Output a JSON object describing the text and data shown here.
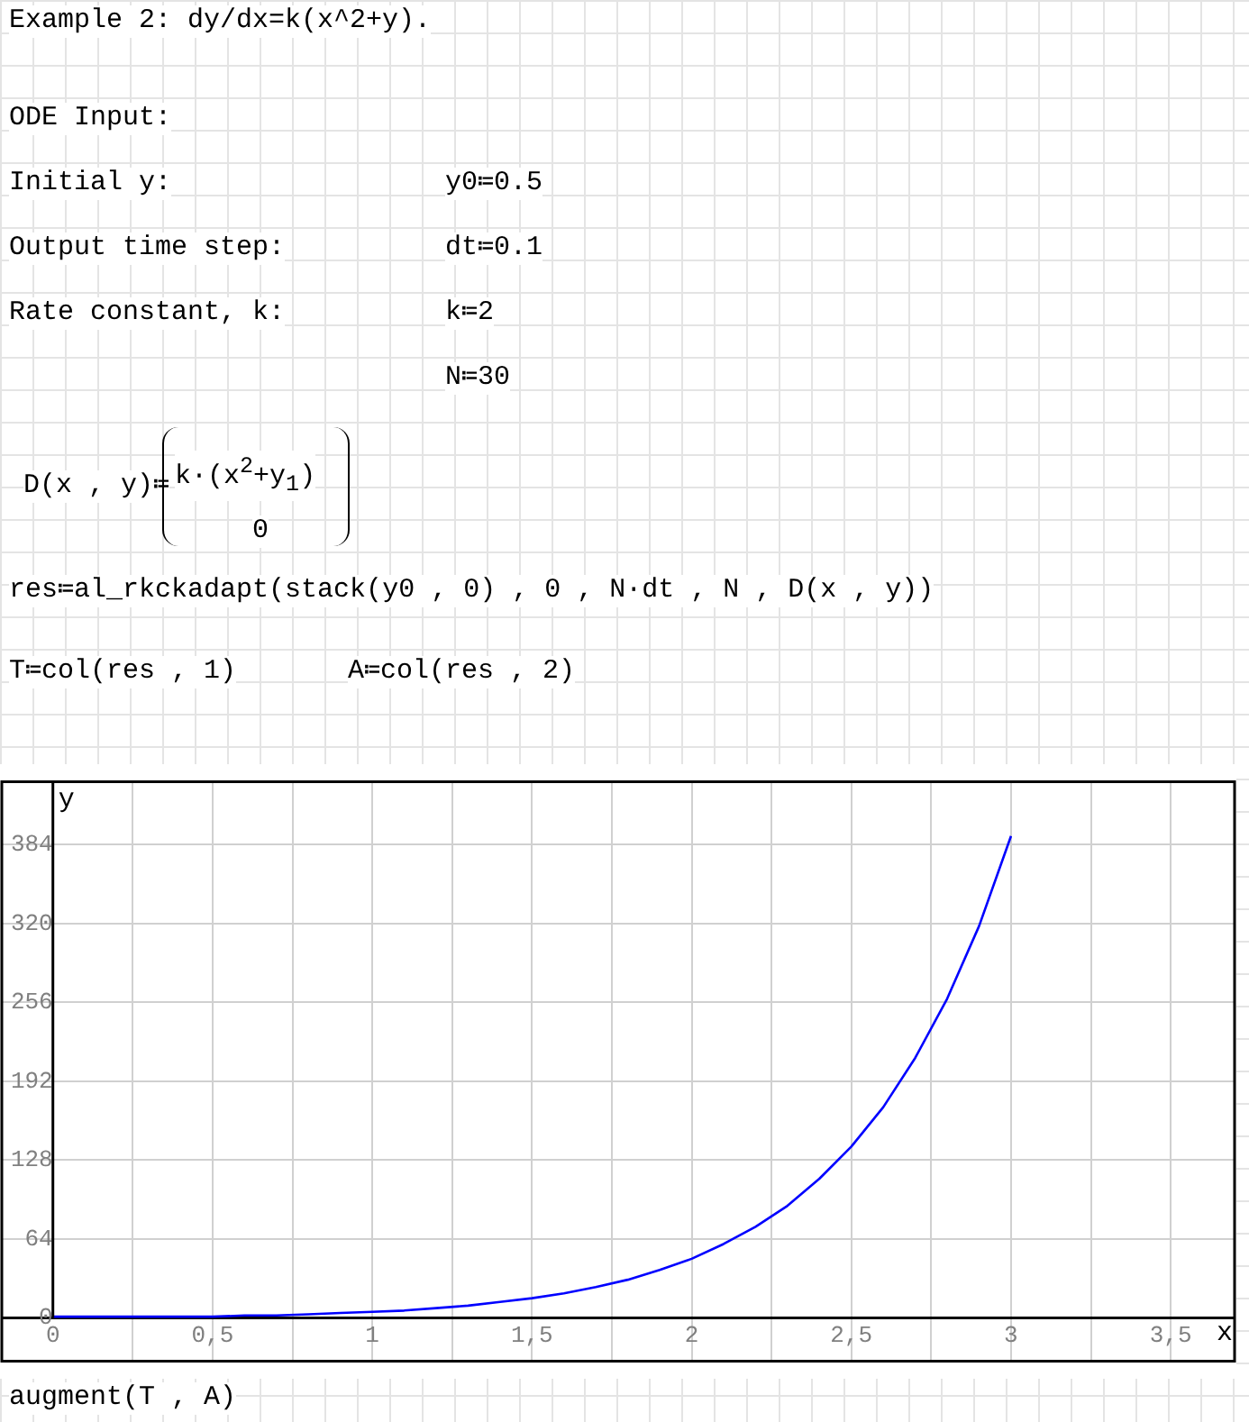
{
  "chart_data": {
    "type": "line",
    "title": "Example 2: dy/dx=k(x^2+y).",
    "xlabel": "x",
    "ylabel": "y",
    "annotations": [
      "ODE Input:",
      "Initial y:",
      "y0≔0.5",
      "Output time step:",
      "dt≔0.1",
      "Rate constant, k:",
      "k≔2",
      "N≔30",
      "D(x , y)≔",
      "k·(x$^{2}$+y$_{1}$)",
      "0",
      "res≔al_rkckadapt(stack(y0 , 0) , 0 , N·dt , N , D(x , y))",
      "T≔col(res , 1)",
      "A≔col(res , 2)",
      "augment(T , A)"
    ],
    "x": [
      0,
      0.1,
      0.2,
      0.3,
      0.4,
      0.5,
      0.6,
      0.7,
      0.8,
      0.9,
      1,
      1.1,
      1.2,
      1.3,
      1.4,
      1.5,
      1.6,
      1.7,
      1.8,
      1.9,
      2,
      2.1,
      2.2,
      2.3,
      2.4,
      2.5,
      2.6,
      2.7,
      2.8,
      2.9,
      3
    ],
    "series": [
      {
        "color": "#0000ff",
        "values": [
          1,
          1,
          1,
          1,
          1,
          1,
          2,
          2,
          3,
          4,
          5,
          6,
          8,
          10,
          13,
          16,
          20,
          25,
          31,
          39,
          48,
          60,
          74,
          91,
          113,
          139,
          171,
          211,
          259,
          318,
          391
        ]
      }
    ],
    "xlim": [
      -0.16,
      3.7
    ],
    "ylim": [
      -35,
      435
    ],
    "xticks": [
      0,
      {
        "value": 0.25,
        "label": null
      },
      {
        "value": 0.5,
        "label": "0,5"
      },
      {
        "value": 0.75,
        "label": null
      },
      1,
      {
        "value": 1.25,
        "label": null
      },
      {
        "value": 1.5,
        "label": "1,5"
      },
      {
        "value": 1.75,
        "label": null
      },
      2,
      {
        "value": 2.25,
        "label": null
      },
      {
        "value": 2.5,
        "label": "2,5"
      },
      {
        "value": 2.75,
        "label": null
      },
      3,
      {
        "value": 3.25,
        "label": null
      },
      {
        "value": 3.5,
        "label": "3,5"
      }
    ],
    "yticks": [
      0,
      64,
      128,
      192,
      256,
      320,
      384
    ],
    "grid": true,
    "legend": false,
    "marker": "none",
    "line_style": "solid"
  }
}
